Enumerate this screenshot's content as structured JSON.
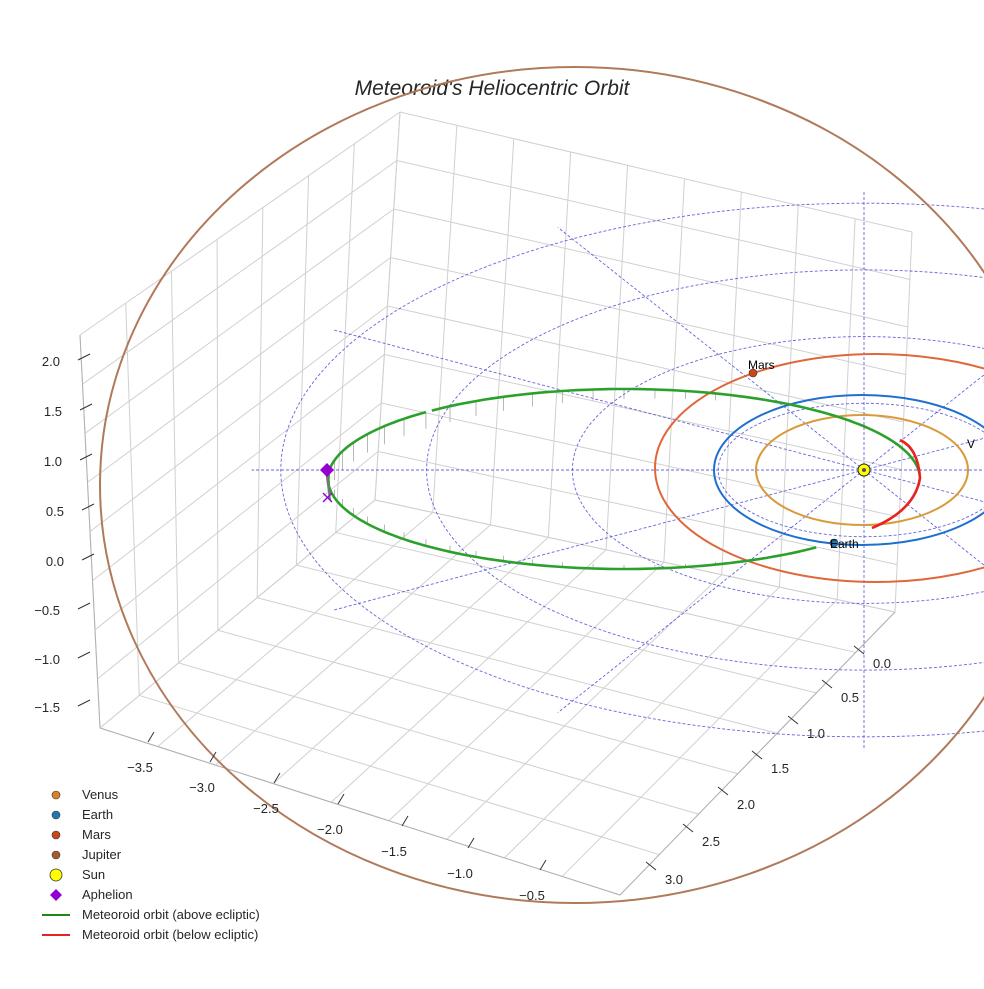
{
  "chart_data": {
    "type": "scatter",
    "projection": "3d",
    "title": "Meteoroid's Heliocentric Orbit",
    "xlabel": "",
    "ylabel": "",
    "zlabel": "",
    "x_ticks": [
      "−3.5",
      "−3.0",
      "−2.5",
      "−2.0",
      "−1.5",
      "−1.0",
      "−0.5"
    ],
    "y_ticks": [
      "0.0",
      "0.5",
      "1.0",
      "1.5",
      "2.0",
      "2.5",
      "3.0"
    ],
    "z_ticks": [
      "2.0",
      "1.5",
      "1.0",
      "0.5",
      "0.0",
      "−0.5",
      "−1.0",
      "−1.5"
    ],
    "grid": true,
    "legend_position": "bottom-left",
    "planets": [
      {
        "name": "Venus",
        "orbit_radius_au": 0.72,
        "color": "#d99a3a",
        "label": "V"
      },
      {
        "name": "Earth",
        "orbit_radius_au": 1.0,
        "color": "#1f6fd0",
        "label": "Earth"
      },
      {
        "name": "Mars",
        "orbit_radius_au": 1.52,
        "color": "#e0673c",
        "label": "Mars"
      },
      {
        "name": "Jupiter",
        "orbit_radius_au": 5.2,
        "color": "#b07a5a",
        "label": ""
      }
    ],
    "sun": {
      "name": "Sun",
      "x": 0,
      "y": 0,
      "z": 0,
      "color": "#ffff00"
    },
    "meteoroid_orbit": {
      "aphelion_x_au": -3.8,
      "perihelion_x_au": 0.25,
      "aphelion_z_au": 0.35,
      "above_ecliptic_color": "#2ca02c",
      "below_ecliptic_color": "#e8231f"
    },
    "aphelion_marker": {
      "label": "Aphelion",
      "color": "#9400d3"
    },
    "legend": [
      {
        "label": "Venus",
        "kind": "dot",
        "color": "#d9821f"
      },
      {
        "label": "Earth",
        "kind": "dot",
        "color": "#1f77b4"
      },
      {
        "label": "Mars",
        "kind": "dot",
        "color": "#c8461a"
      },
      {
        "label": "Jupiter",
        "kind": "dot",
        "color": "#a65a2e"
      },
      {
        "label": "Sun",
        "kind": "sun",
        "color": "#ffff00"
      },
      {
        "label": "Aphelion",
        "kind": "diamond",
        "color": "#9400d3"
      },
      {
        "label": "Meteoroid orbit (above ecliptic)",
        "kind": "line",
        "color": "#1a8a1a"
      },
      {
        "label": "Meteoroid orbit (below ecliptic)",
        "kind": "line",
        "color": "#e8231f"
      }
    ],
    "grid_color": "#d0d0d0",
    "reference_grid_color": "#4b4bd6"
  }
}
